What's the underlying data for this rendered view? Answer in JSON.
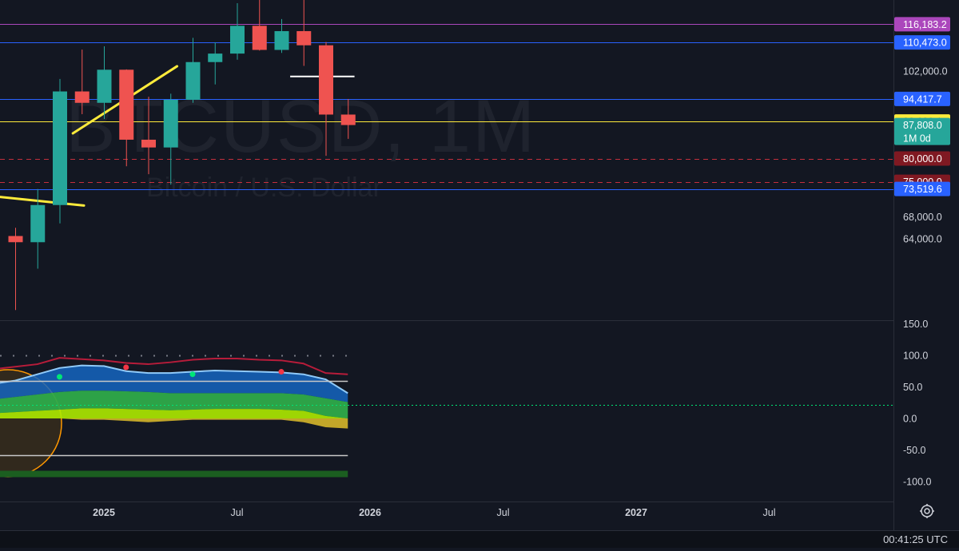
{
  "watermark": {
    "symbol": "BTCUSD, 1M",
    "description": "Bitcoin / U.S. Dollar"
  },
  "colors": {
    "background": "#131722",
    "up": "#26a69a",
    "down": "#ef5350",
    "trendline": "#ffeb3b",
    "grid_text": "#d1d4dc",
    "level_purple": "#ab47bc",
    "level_blue": "#2962ff",
    "level_yellow": "#ffeb3b",
    "level_red": "#f23645"
  },
  "status": {
    "clock": "00:41:25 UTC"
  },
  "chart_data": [
    {
      "type": "candlestick",
      "timeframe": "1M",
      "y_scale": "log",
      "ylim": [
        60000,
        125000
      ],
      "y_ticks": [
        64000,
        68000,
        102000
      ],
      "y_tick_labels": [
        "64,000.0",
        "68,000.0",
        "102,000.0"
      ],
      "x_ticks": [
        "2025",
        "Jul",
        "2026",
        "Jul",
        "2027",
        "Jul"
      ],
      "x_tick_months": [
        "2025-01",
        "2025-07",
        "2026-01",
        "2026-07",
        "2027-01",
        "2027-07"
      ],
      "x_range": [
        "2024-03",
        "2027-10"
      ],
      "candles": [
        {
          "month": "2024-09",
          "open": 64500,
          "high": 66000,
          "low": 52500,
          "close": 63400
        },
        {
          "month": "2024-10",
          "open": 63400,
          "high": 73500,
          "low": 58900,
          "close": 70300
        },
        {
          "month": "2024-11",
          "open": 70300,
          "high": 99800,
          "low": 66800,
          "close": 96400
        },
        {
          "month": "2024-12",
          "open": 96400,
          "high": 108300,
          "low": 90500,
          "close": 93400
        },
        {
          "month": "2025-01",
          "open": 93400,
          "high": 109300,
          "low": 89300,
          "close": 102400
        },
        {
          "month": "2025-02",
          "open": 102400,
          "high": 102500,
          "low": 78300,
          "close": 84300
        },
        {
          "month": "2025-03",
          "open": 84300,
          "high": 95000,
          "low": 76600,
          "close": 82500
        },
        {
          "month": "2025-04",
          "open": 82500,
          "high": 95800,
          "low": 74400,
          "close": 94200
        },
        {
          "month": "2025-05",
          "open": 94200,
          "high": 111900,
          "low": 93400,
          "close": 104600
        },
        {
          "month": "2025-06",
          "open": 104600,
          "high": 110500,
          "low": 98300,
          "close": 107100
        },
        {
          "month": "2025-07",
          "open": 107100,
          "high": 123200,
          "low": 105300,
          "close": 115700
        },
        {
          "month": "2025-08",
          "open": 115700,
          "high": 124400,
          "low": 108000,
          "close": 108200
        },
        {
          "month": "2025-09",
          "open": 108200,
          "high": 117900,
          "low": 107300,
          "close": 114000
        },
        {
          "month": "2025-10",
          "open": 114000,
          "high": 126200,
          "low": 103500,
          "close": 109600
        },
        {
          "month": "2025-11",
          "open": 109600,
          "high": 110600,
          "low": 80600,
          "close": 90400
        },
        {
          "month": "2025-12",
          "open": 90400,
          "high": 94400,
          "low": 84500,
          "close": 87808
        }
      ],
      "horizontal_levels": [
        {
          "value": 116183.2,
          "label": "116,183.2",
          "color": "#ab47bc",
          "style": "solid"
        },
        {
          "value": 110473.0,
          "label": "110,473.0",
          "color": "#2962ff",
          "style": "solid"
        },
        {
          "value": 94417.7,
          "label": "94,417.7",
          "color": "#2962ff",
          "style": "solid"
        },
        {
          "value": 88680.1,
          "label": "88,680.1",
          "color": "#ffeb3b",
          "style": "solid"
        },
        {
          "value": 80000.0,
          "label": "80,000.0",
          "color": "#f23645",
          "style": "dashed"
        },
        {
          "value": 75000.0,
          "label": "75,000.0",
          "color": "#f23645",
          "style": "dashed"
        },
        {
          "value": 73519.6,
          "label": "73,519.6",
          "color": "#2962ff",
          "style": "solid"
        }
      ],
      "last_price": {
        "value": 87808.0,
        "label": "87,808.0",
        "countdown": "1M 0d"
      },
      "trendlines": [
        {
          "from": {
            "month": "2024-07.0",
            "value": 72500
          },
          "to": {
            "month": "2024-12.1",
            "value": 70200
          }
        },
        {
          "from": {
            "month": "2024-11.6",
            "value": 85800
          },
          "to": {
            "month": "2025-04.3",
            "value": 103400
          }
        }
      ],
      "ray": {
        "from_month": "2025-09.4",
        "to_month": "2025-12.3",
        "value": 100500
      }
    },
    {
      "type": "area",
      "name": "oscillator",
      "ylim": [
        -110,
        160
      ],
      "y_ticks": [
        150,
        100,
        50,
        0,
        -50,
        -100
      ],
      "y_tick_labels": [
        "150.0",
        "100.0",
        "50.0",
        "0.0",
        "-50.0",
        "-100.0"
      ],
      "reference_lines": [
        {
          "value": 100,
          "style": "dotted",
          "color": "#787b86"
        },
        {
          "value": 60,
          "style": "solid",
          "color": "#c8c8c8"
        },
        {
          "value": 22,
          "style": "dotted",
          "color": "#00e676"
        },
        {
          "value": -58,
          "style": "solid",
          "color": "#c8c8c8"
        }
      ],
      "months": [
        "2024-08",
        "2024-09",
        "2024-10",
        "2024-11",
        "2024-12",
        "2025-01",
        "2025-02",
        "2025-03",
        "2025-04",
        "2025-05",
        "2025-06",
        "2025-07",
        "2025-08",
        "2025-09",
        "2025-10",
        "2025-11",
        "2025-12"
      ],
      "series": [
        {
          "values": [
            78,
            82,
            86,
            96,
            94,
            92,
            88,
            86,
            89,
            93,
            95,
            95,
            93,
            92,
            87,
            72,
            70
          ],
          "color": "#b71c3a"
        },
        {
          "values": [
            55,
            60,
            70,
            80,
            84,
            83,
            75,
            72,
            72,
            74,
            76,
            75,
            74,
            73,
            70,
            62,
            40
          ],
          "color": "#1565c0"
        },
        {
          "values": [
            30,
            34,
            38,
            42,
            44,
            44,
            43,
            42,
            40,
            40,
            40,
            40,
            40,
            40,
            38,
            32,
            26
          ],
          "color": "#2eaa4a"
        },
        {
          "values": [
            8,
            10,
            12,
            14,
            16,
            16,
            15,
            14,
            13,
            14,
            15,
            15,
            15,
            14,
            12,
            4,
            0
          ],
          "color": "#aeea00"
        },
        {
          "values": [
            0,
            0,
            0,
            0,
            -2,
            -2,
            -4,
            -6,
            -4,
            -2,
            -2,
            -2,
            -2,
            -2,
            -6,
            -14,
            -16
          ],
          "color": "#d6b62a"
        },
        {
          "values": [
            -88,
            -88,
            -88,
            -88,
            -88,
            -88,
            -88,
            -88,
            -88,
            -88,
            -88,
            -88,
            -88,
            -88,
            -88,
            -88,
            -88
          ],
          "color": "#1b5e20"
        }
      ],
      "markers": [
        {
          "month": "2024-11",
          "value": 66,
          "color": "#00e676"
        },
        {
          "month": "2025-02",
          "value": 81,
          "color": "#f23645"
        },
        {
          "month": "2025-05",
          "value": 70,
          "color": "#00e676"
        },
        {
          "month": "2025-09",
          "value": 74,
          "color": "#f23645"
        }
      ]
    }
  ]
}
